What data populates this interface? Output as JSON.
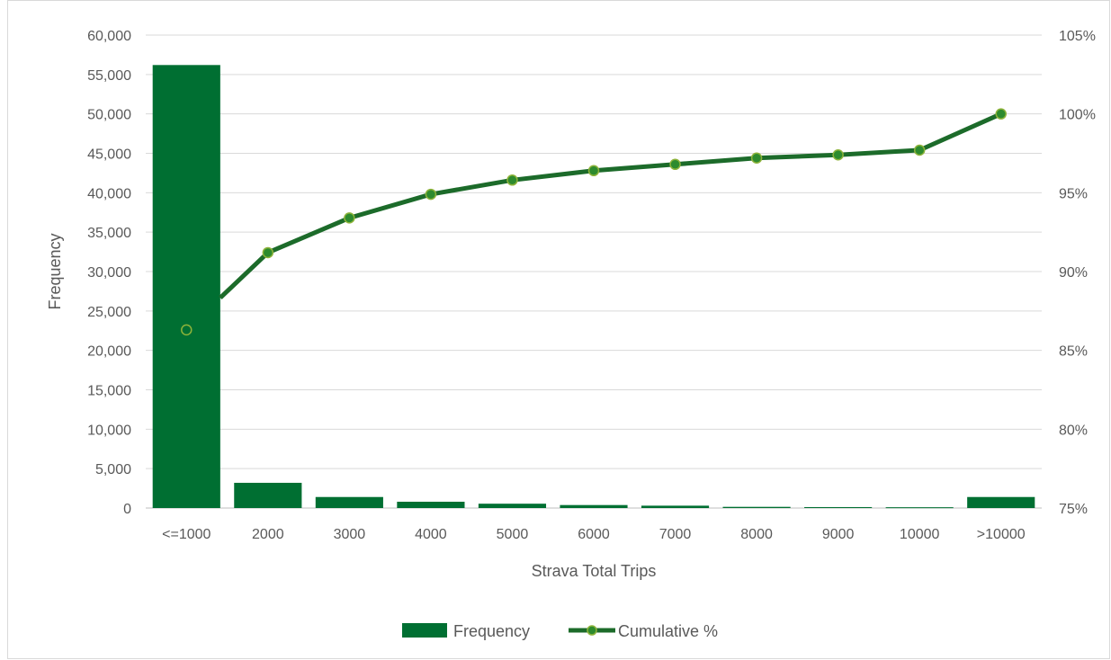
{
  "chart_data": {
    "type": "bar",
    "title": "",
    "xlabel": "Strava Total Trips",
    "ylabel": "Frequency",
    "categories": [
      "<=1000",
      "2000",
      "3000",
      "4000",
      "5000",
      "6000",
      "7000",
      "8000",
      "9000",
      "10000",
      ">10000"
    ],
    "series": [
      {
        "name": "Frequency",
        "type": "bar",
        "axis": "left",
        "values": [
          56200,
          3200,
          1400,
          800,
          550,
          380,
          300,
          150,
          120,
          100,
          1400
        ]
      },
      {
        "name": "Cumulative %",
        "type": "line",
        "axis": "right",
        "values": [
          86.3,
          91.2,
          93.4,
          94.9,
          95.8,
          96.4,
          96.8,
          97.2,
          97.4,
          97.7,
          100.0
        ]
      }
    ],
    "ylim": [
      0,
      60000
    ],
    "y_ticks": [
      "0",
      "5,000",
      "10,000",
      "15,000",
      "20,000",
      "25,000",
      "30,000",
      "35,000",
      "40,000",
      "45,000",
      "50,000",
      "55,000",
      "60,000"
    ],
    "y2lim": [
      75,
      105
    ],
    "y2_ticks": [
      "75%",
      "80%",
      "85%",
      "90%",
      "95%",
      "100%",
      "105%"
    ],
    "grid": true,
    "legend": "bottom",
    "colors": {
      "bar": "#006F32",
      "line": "#1C6B2A",
      "marker_fill": "#2E8B2E",
      "marker_edge": "#8DB33A"
    }
  }
}
